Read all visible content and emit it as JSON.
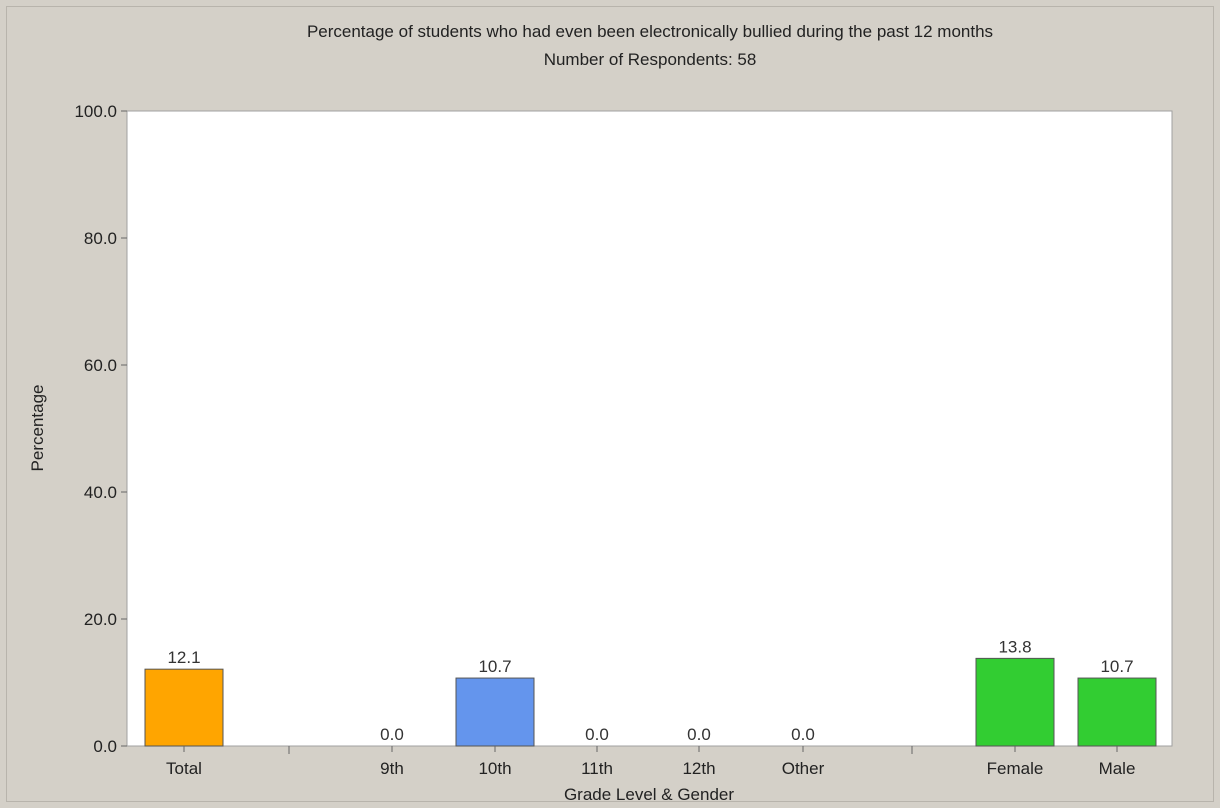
{
  "chart_data": {
    "type": "bar",
    "title": "Percentage of students who had even been electronically bullied during the past 12 months",
    "subtitle": "Number of Respondents: 58",
    "xlabel": "Grade Level & Gender",
    "ylabel": "Percentage",
    "ylim": [
      0,
      100
    ],
    "yticks": [
      "0.0",
      "20.0",
      "40.0",
      "60.0",
      "80.0",
      "100.0"
    ],
    "grid": false,
    "legend": "none",
    "groups": [
      "Total",
      "Grade",
      "Gender"
    ],
    "categories": [
      "Total",
      "9th",
      "10th",
      "11th",
      "12th",
      "Other",
      "Female",
      "Male"
    ],
    "values": [
      12.1,
      0.0,
      10.7,
      0.0,
      0.0,
      0.0,
      13.8,
      10.7
    ],
    "labels": [
      "12.1",
      "0.0",
      "10.7",
      "0.0",
      "0.0",
      "0.0",
      "13.8",
      "10.7"
    ],
    "colors": [
      "#ffa500",
      "#6495ed",
      "#6495ed",
      "#6495ed",
      "#6495ed",
      "#6495ed",
      "#32cd32",
      "#32cd32"
    ],
    "plot_background": "#ffffff"
  }
}
